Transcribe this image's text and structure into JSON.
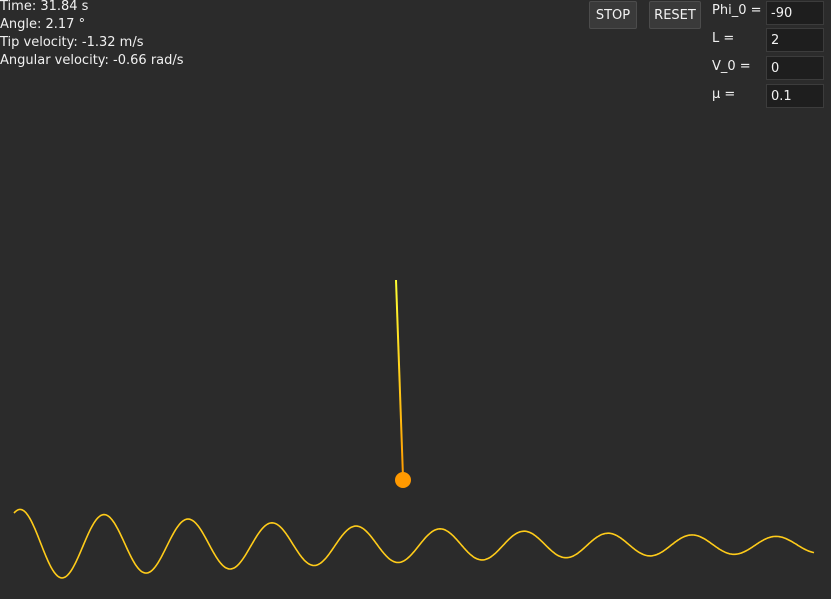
{
  "stats": {
    "time": "Time: 31.84 s",
    "angle": "Angle: 2.17 °",
    "tip_velocity": "Tip velocity: -1.32 m/s",
    "angular_velocity": "Angular velocity: -0.66 rad/s"
  },
  "controls": {
    "stop_label": "STOP",
    "reset_label": "RESET"
  },
  "params": {
    "phi0_label": "Phi_0 =",
    "phi0_value": "-90",
    "L_label": "L =",
    "L_value": "2",
    "v0_label": "V_0 =",
    "v0_value": "0",
    "mu_label": "μ =",
    "mu_value": "0.1"
  },
  "colors": {
    "background": "#2b2b2b",
    "rod_top": "#ffff33",
    "rod_bottom": "#ff9900",
    "bob": "#ff9900",
    "trace": "#ffcc1a"
  }
}
